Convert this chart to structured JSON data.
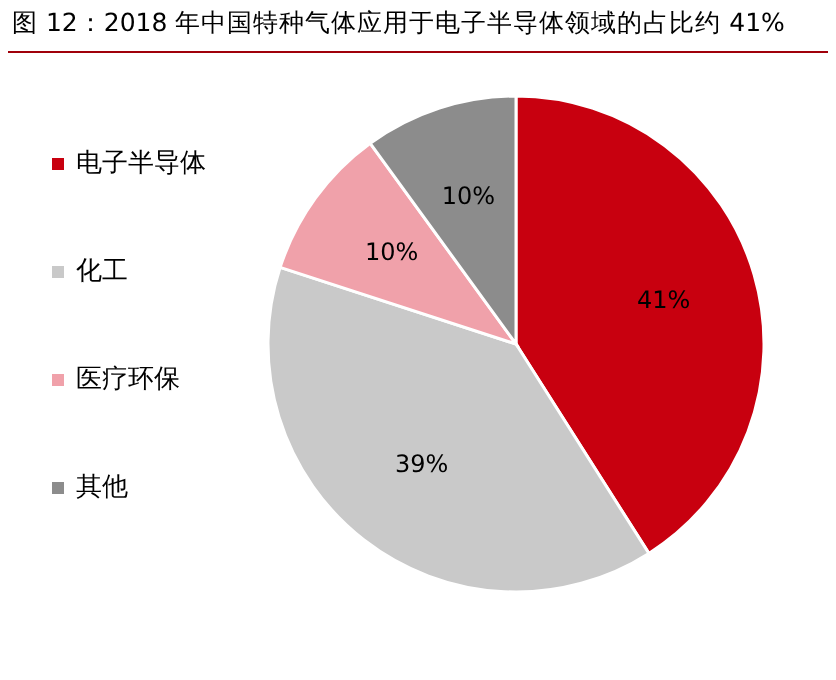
{
  "chart_data": {
    "type": "pie",
    "title": "图 12：2018 年中国特种气体应用于电子半导体领域的占比约 41%",
    "categories": [
      "电子半导体",
      "化工",
      "医疗环保",
      "其他"
    ],
    "values": [
      41,
      39,
      10,
      10
    ],
    "colors": [
      "#c8000f",
      "#c9c9c9",
      "#f0a1aa",
      "#8c8c8c"
    ],
    "value_labels": [
      "41%",
      "39%",
      "10%",
      "10%"
    ],
    "legend": "left"
  }
}
